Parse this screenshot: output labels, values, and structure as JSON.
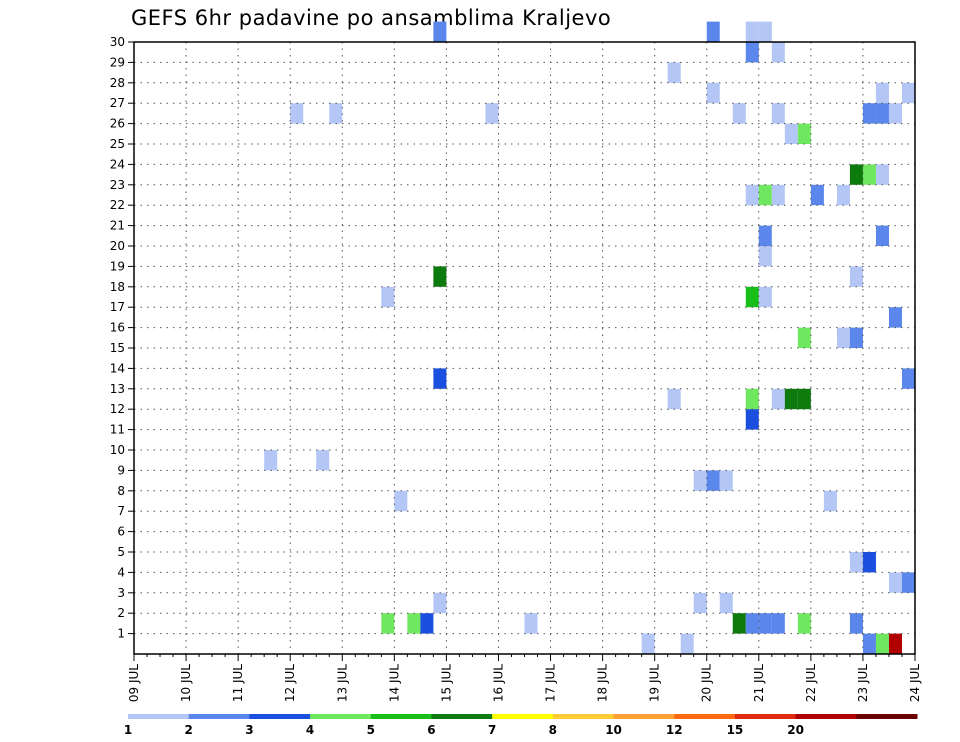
{
  "chart_data": {
    "type": "heatmap",
    "title": "GEFS 6hr padavine po ansamblima Kraljevo",
    "xlabel": "",
    "ylabel": "",
    "x_tick_labels": [
      "09 JUL",
      "10 JUL",
      "11 JUL",
      "12 JUL",
      "13 JUL",
      "14 JUL",
      "15 JUL",
      "16 JUL",
      "17 JUL",
      "18 JUL",
      "19 JUL",
      "20 JUL",
      "21 JUL",
      "22 JUL",
      "23 JUL",
      "24 JUL"
    ],
    "x_range_steps": [
      0,
      60
    ],
    "steps_per_day": 4,
    "y_tick_labels": [
      "1",
      "2",
      "3",
      "4",
      "5",
      "6",
      "7",
      "8",
      "9",
      "10",
      "11",
      "12",
      "13",
      "14",
      "15",
      "16",
      "17",
      "18",
      "19",
      "20",
      "21",
      "22",
      "23",
      "24",
      "25",
      "26",
      "27",
      "28",
      "29",
      "30"
    ],
    "y_range": [
      0,
      30
    ],
    "grid": true,
    "legend": {
      "position": "bottom",
      "bins": [
        {
          "value": "1",
          "color": "#b3c6f5"
        },
        {
          "value": "2",
          "color": "#5b87ec"
        },
        {
          "value": "3",
          "color": "#1b4fe0"
        },
        {
          "value": "4",
          "color": "#6fe860"
        },
        {
          "value": "5",
          "color": "#18bf18"
        },
        {
          "value": "6",
          "color": "#0c7a0c"
        },
        {
          "value": "7",
          "color": "#ffff00"
        },
        {
          "value": "8",
          "color": "#ffcc33"
        },
        {
          "value": "10",
          "color": "#ffa033"
        },
        {
          "value": "12",
          "color": "#ff6a10"
        },
        {
          "value": "15",
          "color": "#e02a10"
        },
        {
          "value": "20",
          "color": "#b00000"
        },
        {
          "value": "",
          "color": "#6a0000"
        }
      ]
    },
    "cells_note": "each cell = [step index from 09 JUL 00z, ensemble member (row), color class 1-12]",
    "cells": [
      [
        23,
        30,
        2
      ],
      [
        44,
        30,
        2
      ],
      [
        47,
        30,
        1
      ],
      [
        48,
        30,
        1
      ],
      [
        47,
        29,
        2
      ],
      [
        49,
        29,
        1
      ],
      [
        41,
        28,
        1
      ],
      [
        44,
        27,
        1
      ],
      [
        57,
        27,
        1
      ],
      [
        59,
        27,
        1
      ],
      [
        12,
        26,
        1
      ],
      [
        15,
        26,
        1
      ],
      [
        27,
        26,
        1
      ],
      [
        46,
        26,
        1
      ],
      [
        49,
        26,
        1
      ],
      [
        56,
        26,
        2
      ],
      [
        57,
        26,
        2
      ],
      [
        58,
        26,
        1
      ],
      [
        50,
        25,
        1
      ],
      [
        51,
        25,
        4
      ],
      [
        55,
        23,
        6
      ],
      [
        56,
        23,
        4
      ],
      [
        57,
        23,
        1
      ],
      [
        47,
        22,
        1
      ],
      [
        48,
        22,
        4
      ],
      [
        49,
        22,
        1
      ],
      [
        52,
        22,
        2
      ],
      [
        54,
        22,
        1
      ],
      [
        48,
        20,
        2
      ],
      [
        57,
        20,
        2
      ],
      [
        48,
        19,
        1
      ],
      [
        23,
        18,
        6
      ],
      [
        55,
        18,
        1
      ],
      [
        19,
        17,
        1
      ],
      [
        47,
        17,
        5
      ],
      [
        48,
        17,
        1
      ],
      [
        58,
        16,
        2
      ],
      [
        51,
        15,
        4
      ],
      [
        54,
        15,
        1
      ],
      [
        55,
        15,
        2
      ],
      [
        23,
        13,
        3
      ],
      [
        59,
        13,
        2
      ],
      [
        41,
        12,
        1
      ],
      [
        47,
        12,
        4
      ],
      [
        49,
        12,
        1
      ],
      [
        50,
        12,
        6
      ],
      [
        51,
        12,
        6
      ],
      [
        47,
        11,
        3
      ],
      [
        10,
        9,
        1
      ],
      [
        14,
        9,
        1
      ],
      [
        43,
        8,
        1
      ],
      [
        44,
        8,
        2
      ],
      [
        45,
        8,
        1
      ],
      [
        20,
        7,
        1
      ],
      [
        53,
        7,
        1
      ],
      [
        55,
        4,
        1
      ],
      [
        56,
        4,
        3
      ],
      [
        58,
        3,
        1
      ],
      [
        59,
        3,
        2
      ],
      [
        23,
        2,
        1
      ],
      [
        43,
        2,
        1
      ],
      [
        45,
        2,
        1
      ],
      [
        19,
        1,
        4
      ],
      [
        21,
        1,
        4
      ],
      [
        22,
        1,
        3
      ],
      [
        30,
        1,
        1
      ],
      [
        46,
        1,
        6
      ],
      [
        47,
        1,
        2
      ],
      [
        48,
        1,
        2
      ],
      [
        49,
        1,
        2
      ],
      [
        51,
        1,
        4
      ],
      [
        55,
        1,
        2
      ],
      [
        39,
        0,
        1
      ],
      [
        42,
        0,
        1
      ],
      [
        56,
        0,
        2
      ],
      [
        57,
        0,
        4
      ],
      [
        58,
        0,
        12
      ]
    ]
  }
}
